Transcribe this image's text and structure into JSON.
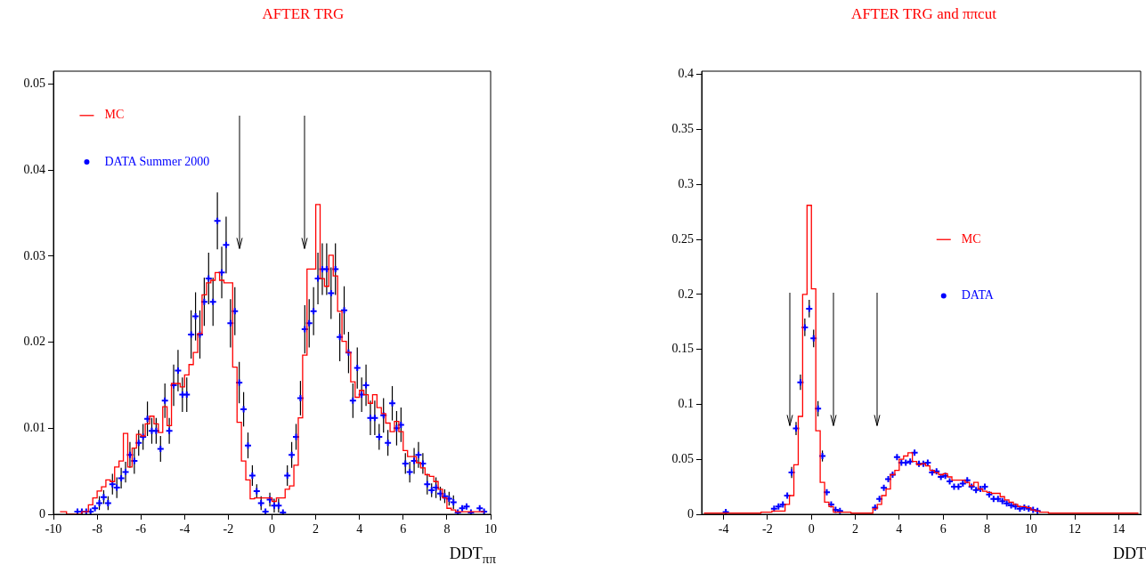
{
  "chart_data": [
    {
      "type": "step",
      "title": "AFTER TRG",
      "xlabel": "DDT$_{ππ}$",
      "xlim": [
        -10,
        10
      ],
      "xticks": [
        -10,
        -8,
        -6,
        -4,
        -2,
        0,
        2,
        4,
        6,
        8,
        10
      ],
      "ylim": [
        0,
        0.0515
      ],
      "yticks": [
        0,
        0.01,
        0.02,
        0.03,
        0.04,
        0.05
      ],
      "legend": "top left",
      "ref_lines": [
        {
          "axis": "x",
          "value": -1.5
        },
        {
          "axis": "x",
          "value": 1.5
        }
      ],
      "series": [
        {
          "name": "MC",
          "color": "#ff0000",
          "x": [
            -9.7,
            -9.5,
            -9.3,
            -8.9,
            -8.5,
            -8.3,
            -8.1,
            -7.9,
            -7.7,
            -7.5,
            -7.3,
            -7.1,
            -6.9,
            -6.7,
            -6.5,
            -6.3,
            -6.1,
            -5.9,
            -5.7,
            -5.5,
            -5.3,
            -5.1,
            -4.9,
            -4.7,
            -4.5,
            -4.3,
            -4.1,
            -3.9,
            -3.7,
            -3.5,
            -3.3,
            -3.1,
            -2.9,
            -2.7,
            -2.5,
            -2.3,
            -2.1,
            -1.9,
            -1.7,
            -1.5,
            -1.3,
            -1.1,
            -0.9,
            -0.7,
            -0.5,
            -0.3,
            -0.1,
            0.1,
            0.3,
            0.5,
            0.7,
            0.9,
            1.1,
            1.3,
            1.5,
            1.7,
            1.9,
            2.1,
            2.3,
            2.5,
            2.7,
            2.9,
            3.1,
            3.3,
            3.5,
            3.7,
            3.9,
            4.1,
            4.3,
            4.5,
            4.7,
            4.9,
            5.1,
            5.3,
            5.5,
            5.7,
            5.9,
            6.1,
            6.3,
            6.5,
            6.7,
            6.9,
            7.1,
            7.3,
            7.5,
            7.7,
            7.9,
            8.1,
            8.3,
            8.5,
            9.1,
            9.7
          ],
          "values": [
            0.0003,
            0.0003,
            0,
            0,
            0.0003,
            0.0011,
            0.0019,
            0.0027,
            0.0032,
            0.004,
            0.0038,
            0.0055,
            0.0062,
            0.0094,
            0.0055,
            0.0077,
            0.0093,
            0.0091,
            0.0105,
            0.0114,
            0.0105,
            0.0095,
            0.0125,
            0.0103,
            0.0152,
            0.0152,
            0.0148,
            0.0162,
            0.0174,
            0.0188,
            0.021,
            0.0255,
            0.0269,
            0.0272,
            0.0281,
            0.0272,
            0.0269,
            0.0269,
            0.0171,
            0.0107,
            0.0062,
            0.004,
            0.0018,
            0.0019,
            0.0019,
            0.0019,
            0.0019,
            0.0015,
            0.0019,
            0.0019,
            0.0029,
            0.0033,
            0.0057,
            0.0112,
            0.0185,
            0.0285,
            0.0285,
            0.036,
            0.0274,
            0.0265,
            0.0301,
            0.0277,
            0.0236,
            0.0201,
            0.0188,
            0.0154,
            0.0136,
            0.0144,
            0.0139,
            0.0129,
            0.0139,
            0.0124,
            0.0117,
            0.0106,
            0.0096,
            0.0108,
            0.0096,
            0.0074,
            0.0067,
            0.0067,
            0.006,
            0.0054,
            0.0046,
            0.0044,
            0.0038,
            0.0029,
            0.0019,
            0.0007,
            0.0005,
            0.0003,
            0.0003,
            0.0003
          ]
        },
        {
          "name": "DATA Summer 2000",
          "type": "scatter",
          "marker": "cross",
          "color": "#0000ff",
          "x": [
            -8.9,
            -8.7,
            -8.5,
            -8.3,
            -8.1,
            -7.9,
            -7.7,
            -7.5,
            -7.3,
            -7.1,
            -6.9,
            -6.7,
            -6.5,
            -6.3,
            -6.1,
            -5.9,
            -5.7,
            -5.5,
            -5.3,
            -5.1,
            -4.9,
            -4.7,
            -4.5,
            -4.3,
            -4.1,
            -3.9,
            -3.7,
            -3.5,
            -3.3,
            -3.1,
            -2.9,
            -2.7,
            -2.5,
            -2.3,
            -2.1,
            -1.9,
            -1.7,
            -1.5,
            -1.3,
            -1.1,
            -0.9,
            -0.7,
            -0.5,
            -0.3,
            -0.1,
            0.1,
            0.3,
            0.5,
            0.7,
            0.9,
            1.1,
            1.3,
            1.5,
            1.7,
            1.9,
            2.1,
            2.3,
            2.5,
            2.7,
            2.9,
            3.1,
            3.3,
            3.5,
            3.7,
            3.9,
            4.1,
            4.3,
            4.5,
            4.7,
            4.9,
            5.1,
            5.3,
            5.5,
            5.7,
            5.9,
            6.1,
            6.3,
            6.5,
            6.7,
            6.9,
            7.1,
            7.3,
            7.5,
            7.7,
            7.9,
            8.1,
            8.3,
            8.5,
            8.7,
            8.9,
            9.1,
            9.5,
            9.7
          ],
          "values": [
            0.0003,
            0.0003,
            0.0003,
            0.0003,
            0.0007,
            0.0013,
            0.002,
            0.0013,
            0.0035,
            0.0031,
            0.0042,
            0.0049,
            0.0069,
            0.0062,
            0.0083,
            0.009,
            0.0111,
            0.0097,
            0.0097,
            0.0076,
            0.0132,
            0.0097,
            0.015,
            0.0167,
            0.0139,
            0.0139,
            0.0209,
            0.023,
            0.0209,
            0.0247,
            0.0274,
            0.0247,
            0.0341,
            0.0281,
            0.0313,
            0.0222,
            0.0236,
            0.0153,
            0.0122,
            0.008,
            0.0045,
            0.0027,
            0.0013,
            0.0003,
            0.0017,
            0.001,
            0.001,
            0.0002,
            0.0045,
            0.0069,
            0.009,
            0.0135,
            0.0215,
            0.0222,
            0.0236,
            0.0274,
            0.0285,
            0.0285,
            0.0257,
            0.0285,
            0.0206,
            0.0237,
            0.0188,
            0.0132,
            0.017,
            0.0139,
            0.015,
            0.0112,
            0.0112,
            0.009,
            0.0115,
            0.0083,
            0.0129,
            0.01,
            0.0104,
            0.0059,
            0.0049,
            0.0062,
            0.0069,
            0.0059,
            0.0035,
            0.0028,
            0.0031,
            0.0024,
            0.0021,
            0.0018,
            0.0014,
            0.0002,
            0.0007,
            0.0009,
            0.0002,
            0.0007,
            0.0003
          ],
          "errors": [
            null,
            null,
            null,
            null,
            null,
            0.0008,
            0.0008,
            0.0008,
            0.0012,
            0.0012,
            0.0012,
            0.0012,
            0.0015,
            0.0015,
            0.0015,
            0.0015,
            0.002,
            0.0015,
            0.0015,
            0.0015,
            0.002,
            0.0015,
            0.0024,
            0.0024,
            0.002,
            0.002,
            0.0028,
            0.0028,
            0.0028,
            0.0028,
            0.003,
            0.0028,
            0.0033,
            0.003,
            0.0033,
            0.0028,
            0.0028,
            0.0024,
            0.002,
            0.0015,
            0.0012,
            0.0008,
            0.0008,
            null,
            0.0008,
            0.0008,
            0.0008,
            null,
            0.0012,
            0.0015,
            0.0015,
            0.002,
            0.0028,
            0.0028,
            0.0028,
            0.003,
            0.003,
            0.003,
            0.003,
            0.003,
            0.0028,
            0.0028,
            0.0024,
            0.002,
            0.0024,
            0.002,
            0.0024,
            0.002,
            0.002,
            0.0015,
            0.002,
            0.0015,
            0.002,
            0.002,
            0.002,
            0.0012,
            0.0012,
            0.0015,
            0.0015,
            0.0012,
            0.0012,
            0.0008,
            0.0012,
            0.0008,
            0.0008,
            0.0008,
            0.0008,
            null,
            null,
            null,
            null,
            null,
            null
          ]
        }
      ]
    },
    {
      "type": "step",
      "title": "AFTER TRG and ππcut",
      "xlabel": "DDT",
      "xlim": [
        -5,
        15
      ],
      "xticks": [
        -4,
        -2,
        0,
        2,
        4,
        6,
        8,
        10,
        12,
        14
      ],
      "ylim": [
        0,
        0.403
      ],
      "yticks": [
        0,
        0.05,
        0.1,
        0.15,
        0.2,
        0.25,
        0.3,
        0.35,
        0.4
      ],
      "legend": "right",
      "ref_lines": [
        {
          "axis": "x",
          "value": -1
        },
        {
          "axis": "x",
          "value": 1
        },
        {
          "axis": "x",
          "value": 3
        }
      ],
      "series": [
        {
          "name": "MC",
          "color": "#ff0000",
          "x": [
            -4.9,
            -4.5,
            -3.9,
            -3.1,
            -2.5,
            -2.1,
            -1.9,
            -1.7,
            -1.5,
            -1.3,
            -1.1,
            -0.9,
            -0.7,
            -0.5,
            -0.3,
            -0.1,
            0.1,
            0.3,
            0.5,
            0.7,
            0.9,
            1.1,
            1.5,
            2.1,
            2.7,
            2.9,
            3.1,
            3.3,
            3.5,
            3.7,
            3.9,
            4.1,
            4.3,
            4.5,
            4.7,
            4.9,
            5.1,
            5.3,
            5.5,
            5.7,
            5.9,
            6.1,
            6.3,
            6.5,
            6.7,
            6.9,
            7.1,
            7.3,
            7.5,
            7.7,
            7.9,
            8.1,
            8.3,
            8.5,
            8.7,
            8.9,
            9.1,
            9.3,
            9.5,
            9.7,
            9.9,
            10.1,
            10.3,
            10.5,
            11.1,
            12.1,
            12.9,
            13.5,
            14.9
          ],
          "values": [
            0.001,
            0.001,
            0.001,
            0.001,
            0.001,
            0.002,
            0.002,
            0.003,
            0.003,
            0.003,
            0.009,
            0.017,
            0.045,
            0.089,
            0.2,
            0.281,
            0.205,
            0.076,
            0.029,
            0.011,
            0.007,
            0.002,
            0.002,
            0.001,
            0.001,
            0.005,
            0.009,
            0.017,
            0.023,
            0.036,
            0.04,
            0.05,
            0.053,
            0.056,
            0.048,
            0.045,
            0.046,
            0.044,
            0.04,
            0.038,
            0.036,
            0.037,
            0.034,
            0.031,
            0.031,
            0.031,
            0.029,
            0.026,
            0.029,
            0.023,
            0.021,
            0.02,
            0.019,
            0.019,
            0.016,
            0.013,
            0.011,
            0.009,
            0.007,
            0.007,
            0.006,
            0.004,
            0.003,
            0.002,
            0.001,
            0.001,
            0.001,
            0.001,
            0.001
          ]
        },
        {
          "name": "DATA",
          "type": "scatter",
          "marker": "cross",
          "color": "#0000ff",
          "x": [
            -3.9,
            -1.7,
            -1.5,
            -1.3,
            -1.1,
            -0.9,
            -0.7,
            -0.5,
            -0.3,
            -0.1,
            0.1,
            0.3,
            0.5,
            0.7,
            0.9,
            1.1,
            1.3,
            2.9,
            3.1,
            3.3,
            3.5,
            3.7,
            3.9,
            4.1,
            4.3,
            4.5,
            4.7,
            4.9,
            5.1,
            5.3,
            5.5,
            5.7,
            5.9,
            6.1,
            6.3,
            6.5,
            6.7,
            6.9,
            7.1,
            7.3,
            7.5,
            7.7,
            7.9,
            8.1,
            8.3,
            8.5,
            8.7,
            8.9,
            9.1,
            9.3,
            9.5,
            9.7,
            9.9,
            10.1,
            10.3
          ],
          "values": [
            0.002,
            0.005,
            0.007,
            0.009,
            0.017,
            0.038,
            0.078,
            0.12,
            0.17,
            0.187,
            0.16,
            0.096,
            0.053,
            0.02,
            0.009,
            0.004,
            0.003,
            0.006,
            0.014,
            0.024,
            0.032,
            0.036,
            0.052,
            0.047,
            0.047,
            0.048,
            0.056,
            0.046,
            0.046,
            0.047,
            0.038,
            0.039,
            0.034,
            0.035,
            0.03,
            0.025,
            0.025,
            0.028,
            0.031,
            0.025,
            0.022,
            0.023,
            0.025,
            0.018,
            0.014,
            0.014,
            0.012,
            0.01,
            0.008,
            0.007,
            0.005,
            0.006,
            0.005,
            0.004,
            0.003
          ],
          "errors": [
            null,
            null,
            null,
            null,
            null,
            0.005,
            0.006,
            0.007,
            0.008,
            0.008,
            0.008,
            0.007,
            0.005,
            null,
            null,
            null,
            null,
            null,
            null,
            null,
            null,
            null,
            null,
            null,
            null,
            null,
            null,
            null,
            null,
            null,
            null,
            null,
            null,
            null,
            null,
            null,
            null,
            null,
            null,
            null,
            null,
            null,
            null,
            null,
            null,
            null,
            null,
            null,
            null,
            null,
            null,
            null,
            null,
            null,
            null
          ]
        }
      ]
    }
  ]
}
